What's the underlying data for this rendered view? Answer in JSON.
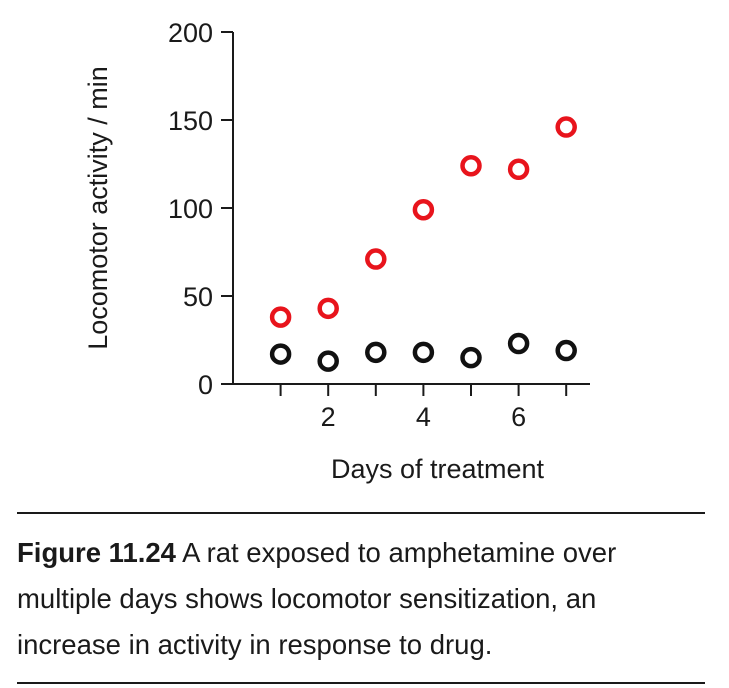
{
  "chart_data": {
    "type": "scatter",
    "title": "",
    "xlabel": "Days of treatment",
    "ylabel": "Locomotor activity / min",
    "xlim": [
      0,
      7.5
    ],
    "ylim": [
      0,
      200
    ],
    "x_ticks": [
      1,
      2,
      3,
      4,
      5,
      6,
      7
    ],
    "x_tick_labels": [
      "",
      "2",
      "",
      "4",
      "",
      "6",
      ""
    ],
    "y_ticks": [
      0,
      50,
      100,
      150,
      200
    ],
    "y_tick_labels": [
      "0",
      "50",
      "100",
      "150",
      "200"
    ],
    "grid": false,
    "legend": "none",
    "series": [
      {
        "color": "#e8141c",
        "x": [
          1,
          2,
          3,
          4,
          5,
          6,
          7
        ],
        "y": [
          38,
          43,
          71,
          99,
          124,
          122,
          146
        ]
      },
      {
        "color": "#111111",
        "x": [
          1,
          2,
          3,
          4,
          5,
          6,
          7
        ],
        "y": [
          17,
          13,
          18,
          18,
          15,
          23,
          19
        ]
      }
    ]
  },
  "caption": {
    "label": "Figure 11.24",
    "text": " A rat exposed to amphetamine over multiple days shows locomotor sensitization, an increase in activity in response to drug."
  }
}
